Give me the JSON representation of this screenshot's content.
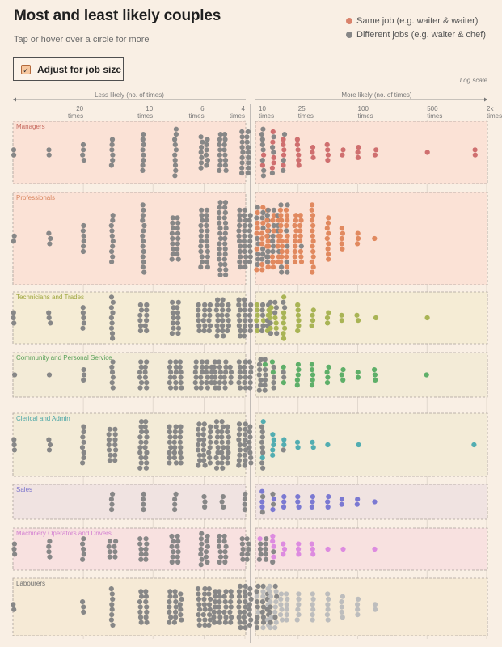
{
  "header": {
    "title": "Most and least likely couples",
    "subtitle": "Tap or hover over a circle for more"
  },
  "legend": {
    "same_label": "Same job (e.g. waiter & waiter)",
    "diff_label": "Different jobs (e.g. waiter & chef)",
    "same_color": "#d9826b",
    "diff_color": "#878787"
  },
  "controls": {
    "adjust_label": "Adjust for job size",
    "adjust_checked": true,
    "check_glyph": "✓"
  },
  "scale_note": "Log scale",
  "chart_data": {
    "type": "scatter",
    "subtype": "beeswarm",
    "scale": "log",
    "left_axis": {
      "label": "Less likely (no. of times)",
      "ticks": [
        {
          "value": 20,
          "label": "20"
        },
        {
          "value": 10,
          "label": "10"
        },
        {
          "value": 6,
          "label": "6"
        },
        {
          "value": 4,
          "label": "4"
        }
      ],
      "unit": "times"
    },
    "right_axis": {
      "label": "More likely (no. of times)",
      "ticks": [
        {
          "value": 10,
          "label": "10"
        },
        {
          "value": 25,
          "label": "25"
        },
        {
          "value": 100,
          "label": "100"
        },
        {
          "value": 500,
          "label": "500"
        },
        {
          "value": 2000,
          "label": "2k"
        }
      ],
      "unit": "times"
    },
    "series": [
      {
        "name": "Managers",
        "label_color": "#c76a5f",
        "bg": "#fbe2d6",
        "same_color": "#cf6f6f",
        "left_counts": [
          2,
          2,
          4,
          6,
          8,
          10,
          13,
          16,
          18
        ],
        "right_counts": [
          10,
          9,
          8,
          6,
          3,
          4,
          2,
          3,
          2,
          0,
          1,
          2
        ],
        "right_same_share": [
          0.1,
          0.3,
          0.6,
          0.85,
          1,
          1,
          1,
          1,
          1,
          1,
          1,
          1
        ]
      },
      {
        "name": "Professionals",
        "label_color": "#d9855e",
        "bg": "#fbe2d6",
        "same_color": "#e1895f",
        "left_counts": [
          2,
          3,
          6,
          10,
          14,
          18,
          24,
          30,
          34
        ],
        "right_counts": [
          38,
          34,
          28,
          20,
          14,
          9,
          5,
          3,
          1,
          0,
          0,
          0
        ],
        "right_same_share": [
          0.35,
          0.5,
          0.75,
          0.95,
          1,
          1,
          1,
          1,
          1,
          1,
          1,
          1
        ]
      },
      {
        "name": "Technicians and Trades",
        "label_color": "#9ea63e",
        "bg": "#f5ecd5",
        "same_color": "#a9b455",
        "left_counts": [
          3,
          3,
          5,
          9,
          12,
          14,
          18,
          22,
          22
        ],
        "right_counts": [
          18,
          14,
          9,
          6,
          4,
          3,
          2,
          2,
          1,
          0,
          1,
          0
        ],
        "right_same_share": [
          0.35,
          0.6,
          0.8,
          0.95,
          1,
          1,
          1,
          1,
          1,
          1,
          1,
          1
        ]
      },
      {
        "name": "Community and Personal Service",
        "label_color": "#5aa15a",
        "bg": "#f3ebd7",
        "same_color": "#5eaf69",
        "left_counts": [
          1,
          1,
          3,
          6,
          12,
          18,
          22,
          22,
          18
        ],
        "right_counts": [
          14,
          6,
          4,
          5,
          5,
          4,
          3,
          2,
          3,
          0,
          1,
          0
        ],
        "right_same_share": [
          0.1,
          0.5,
          0.85,
          1,
          1,
          1,
          1,
          1,
          1,
          1,
          1,
          1
        ]
      },
      {
        "name": "Clerical and Admin",
        "label_color": "#4aa6a6",
        "bg": "#f3ebd7",
        "same_color": "#52adb1",
        "left_counts": [
          3,
          3,
          8,
          14,
          20,
          24,
          26,
          28,
          26
        ],
        "right_counts": [
          10,
          5,
          3,
          2,
          2,
          1,
          0,
          1,
          0,
          0,
          0,
          1
        ],
        "right_same_share": [
          0.25,
          0.5,
          0.8,
          1,
          1,
          1,
          1,
          1,
          1,
          1,
          1,
          1
        ]
      },
      {
        "name": "Sales",
        "label_color": "#7b74cc",
        "bg": "#f0e3e1",
        "same_color": "#7b79d2",
        "left_counts": [
          0,
          0,
          0,
          4,
          4,
          4,
          3,
          3,
          4
        ],
        "right_counts": [
          5,
          4,
          3,
          3,
          3,
          3,
          2,
          2,
          1,
          0,
          0,
          0
        ],
        "right_same_share": [
          0.5,
          0.75,
          1,
          1,
          1,
          1,
          1,
          1,
          1,
          1,
          1,
          1
        ]
      },
      {
        "name": "Machinery Operators and Drivers",
        "label_color": "#d37fd1",
        "bg": "#f8e1e0",
        "same_color": "#dd8be0",
        "left_counts": [
          3,
          4,
          5,
          8,
          10,
          12,
          13,
          12,
          10
        ],
        "right_counts": [
          10,
          6,
          3,
          3,
          3,
          1,
          1,
          0,
          1,
          0,
          0,
          0
        ],
        "right_same_share": [
          0.35,
          0.6,
          0.9,
          1,
          1,
          1,
          1,
          1,
          1,
          1,
          1,
          1
        ]
      },
      {
        "name": "Labourers",
        "label_color": "#6f6f6f",
        "bg": "#f6ead6",
        "same_color": "#bdbdbd",
        "left_counts": [
          2,
          0,
          3,
          8,
          14,
          20,
          24,
          28,
          26
        ],
        "right_counts": [
          26,
          18,
          12,
          6,
          6,
          6,
          5,
          4,
          2,
          0,
          0,
          0
        ],
        "right_same_share": [
          0.3,
          0.65,
          0.9,
          1,
          1,
          1,
          1,
          1,
          1,
          1,
          1,
          1
        ]
      }
    ]
  }
}
